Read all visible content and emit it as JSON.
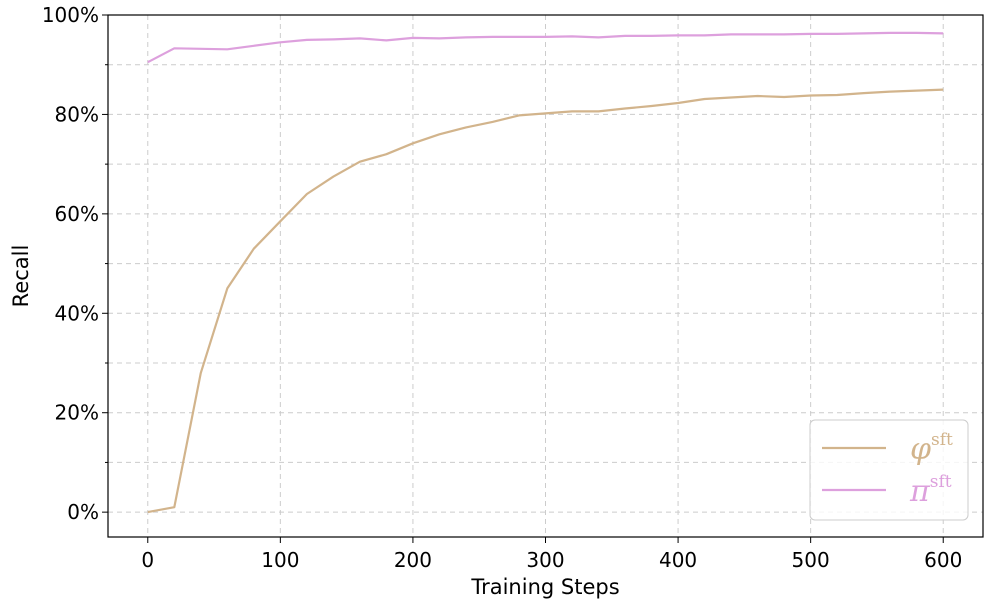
{
  "chart_data": {
    "type": "line",
    "xlabel": "Training Steps",
    "ylabel": "Recall",
    "xlim": [
      -30,
      630
    ],
    "ylim": [
      -0.05,
      1.0
    ],
    "xticks": [
      0,
      100,
      200,
      300,
      400,
      500,
      600
    ],
    "xtick_labels": [
      "0",
      "100",
      "200",
      "300",
      "400",
      "500",
      "600"
    ],
    "yticks": [
      0,
      0.2,
      0.4,
      0.6,
      0.8,
      1.0
    ],
    "ytick_labels": [
      "0%",
      "20%",
      "40%",
      "60%",
      "80%",
      "100%"
    ],
    "y_minor_ticks": [
      0.1,
      0.3,
      0.5,
      0.7,
      0.9
    ],
    "grid": true,
    "legend_position": "bottom-right",
    "x": [
      0,
      20,
      40,
      60,
      80,
      100,
      120,
      140,
      160,
      180,
      200,
      220,
      240,
      260,
      280,
      300,
      320,
      340,
      360,
      380,
      400,
      420,
      440,
      460,
      480,
      500,
      520,
      540,
      560,
      580,
      600
    ],
    "series": [
      {
        "name": "φ",
        "name_sup": "sft",
        "color": "#d2b48c",
        "values": [
          0.0,
          0.01,
          0.28,
          0.45,
          0.53,
          0.585,
          0.64,
          0.675,
          0.705,
          0.72,
          0.742,
          0.76,
          0.774,
          0.785,
          0.798,
          0.802,
          0.806,
          0.806,
          0.812,
          0.817,
          0.823,
          0.831,
          0.834,
          0.837,
          0.835,
          0.838,
          0.839,
          0.843,
          0.846,
          0.848,
          0.85
        ]
      },
      {
        "name": "π",
        "name_sup": "sft",
        "color": "#dda0dd",
        "values": [
          0.905,
          0.933,
          0.932,
          0.931,
          0.938,
          0.945,
          0.95,
          0.951,
          0.953,
          0.949,
          0.954,
          0.953,
          0.955,
          0.956,
          0.956,
          0.956,
          0.957,
          0.955,
          0.958,
          0.958,
          0.959,
          0.959,
          0.961,
          0.961,
          0.961,
          0.962,
          0.962,
          0.963,
          0.964,
          0.964,
          0.963
        ]
      }
    ]
  }
}
